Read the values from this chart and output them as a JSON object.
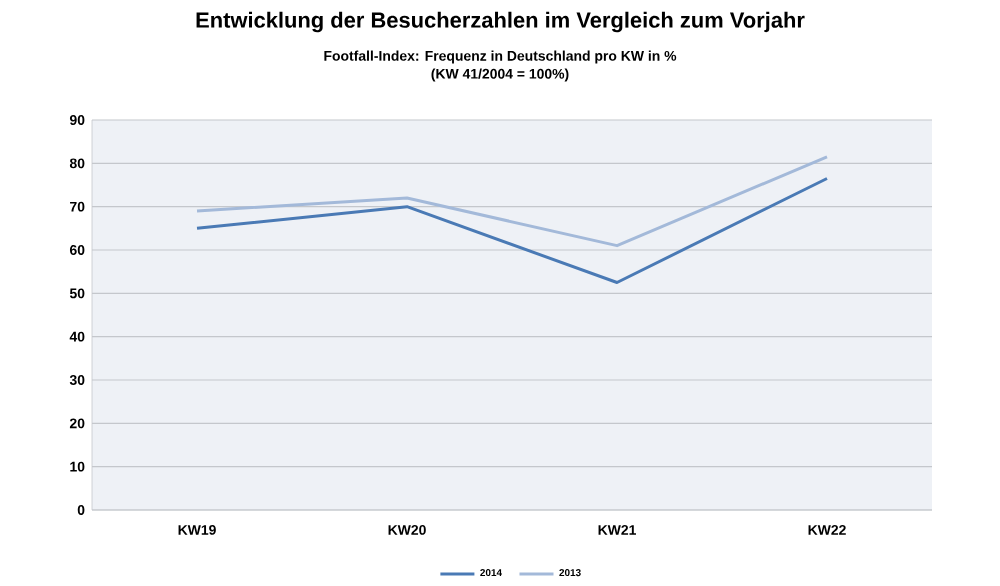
{
  "chart_data": {
    "type": "line",
    "title": "Entwicklung der Besucherzahlen im Vergleich zum Vorjahr",
    "subtitle": "Footfall-Index: Frequenz in Deutschland pro KW in %\n(KW 41/2004 = 100%)",
    "categories": [
      "KW19",
      "KW20",
      "KW21",
      "KW22"
    ],
    "series": [
      {
        "name": "2014",
        "color": "#4a7ab5",
        "values": [
          65,
          70,
          52.5,
          76.5
        ]
      },
      {
        "name": "2013",
        "color": "#a3b9d9",
        "values": [
          69,
          72,
          61,
          81.5
        ]
      }
    ],
    "ylim": [
      0,
      90
    ],
    "yticks": [
      0,
      10,
      20,
      30,
      40,
      50,
      60,
      70,
      80,
      90
    ],
    "grid": "y",
    "legend": "bottom",
    "marker": "none",
    "line_style": "solid"
  }
}
